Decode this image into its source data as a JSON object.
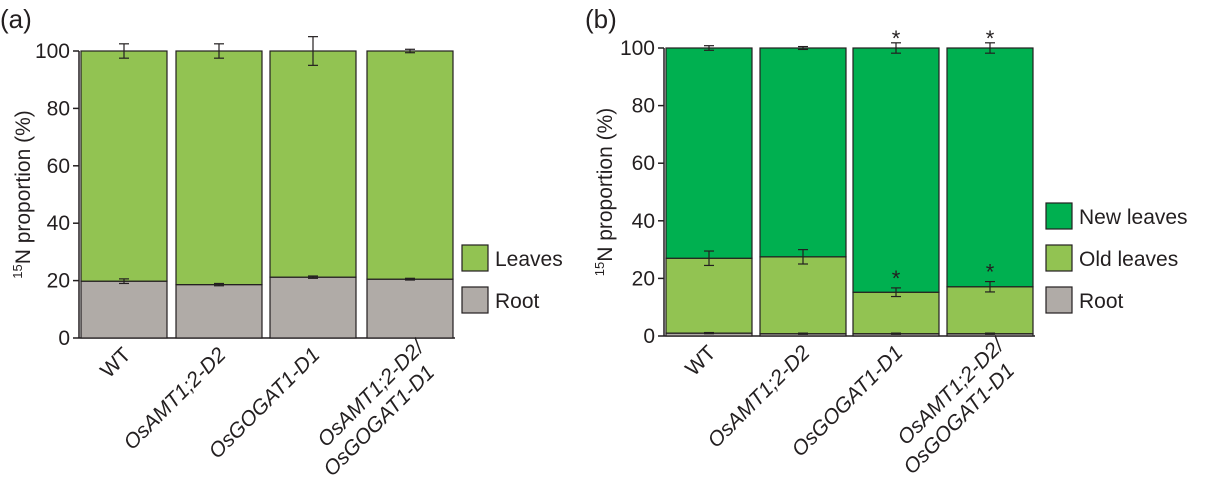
{
  "chart_data": [
    {
      "type": "bar",
      "panel_label": "(a)",
      "stacked": true,
      "ylabel_sup": "15",
      "ylabel": "N proportion  (%)",
      "ylim": [
        0,
        100
      ],
      "yticks": [
        "0",
        "20",
        "40",
        "60",
        "80",
        "100"
      ],
      "categories": [
        {
          "lines": [
            "WT"
          ],
          "italic": false
        },
        {
          "lines": [
            "OsAMT1;2-D2"
          ],
          "italic": true
        },
        {
          "lines": [
            "OsGOGAT1-D1"
          ],
          "italic": true
        },
        {
          "lines": [
            "OsAMT1;2-D2/",
            "OsGOGAT1-D1"
          ],
          "italic": true
        }
      ],
      "series": [
        {
          "name": "Root",
          "color": "#b0aba7",
          "values": [
            19.8,
            18.6,
            21.2,
            20.5
          ],
          "errors": [
            0.8,
            0.4,
            0.4,
            0.3
          ],
          "stars": [
            false,
            false,
            false,
            false
          ]
        },
        {
          "name": "Leaves",
          "color": "#92c352",
          "values": [
            80.2,
            81.4,
            78.8,
            79.5
          ],
          "errors": [
            2.5,
            2.5,
            5.0,
            0.6
          ],
          "stars": [
            false,
            false,
            false,
            false
          ]
        }
      ],
      "legend_order": [
        "Leaves",
        "Root"
      ],
      "legend_position": "right"
    },
    {
      "type": "bar",
      "panel_label": "(b)",
      "stacked": true,
      "ylabel_sup": "15",
      "ylabel": "N proportion  (%)",
      "ylim": [
        0,
        100
      ],
      "yticks": [
        "0",
        "20",
        "40",
        "60",
        "80",
        "100"
      ],
      "categories": [
        {
          "lines": [
            "WT"
          ],
          "italic": false
        },
        {
          "lines": [
            "OsAMT1;2-D2"
          ],
          "italic": true
        },
        {
          "lines": [
            "OsGOGAT1-D1"
          ],
          "italic": true
        },
        {
          "lines": [
            "OsAMT1;2-D2/",
            "OsGOGAT1-D1"
          ],
          "italic": true
        }
      ],
      "series": [
        {
          "name": "Root",
          "color": "#b0aba7",
          "values": [
            1.0,
            0.8,
            0.8,
            0.8
          ],
          "errors": [
            0.2,
            0.2,
            0.2,
            0.2
          ],
          "stars": [
            false,
            false,
            false,
            false
          ]
        },
        {
          "name": "Old leaves",
          "color": "#92c352",
          "values": [
            26.0,
            26.7,
            14.4,
            16.3
          ],
          "errors": [
            2.5,
            2.5,
            1.5,
            1.8
          ],
          "stars": [
            false,
            false,
            true,
            true
          ]
        },
        {
          "name": "New leaves",
          "color": "#00b050",
          "values": [
            73.0,
            72.5,
            84.8,
            82.9
          ],
          "errors": [
            0.8,
            0.5,
            1.8,
            1.8
          ],
          "stars": [
            false,
            false,
            true,
            true
          ]
        }
      ],
      "legend_order": [
        "New leaves",
        "Old leaves",
        "Root"
      ],
      "legend_position": "right"
    }
  ]
}
